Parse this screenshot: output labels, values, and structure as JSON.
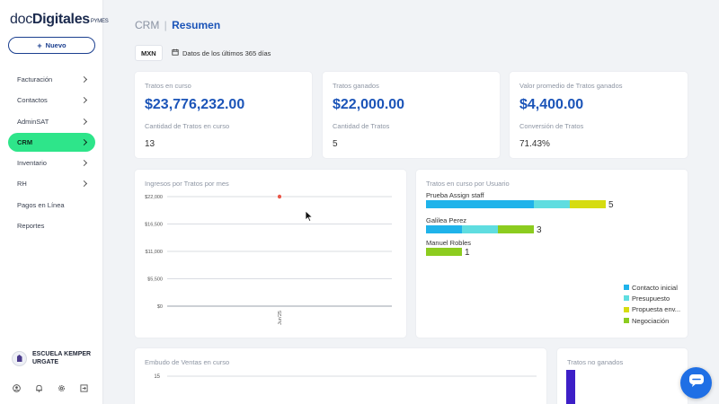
{
  "brand": {
    "doc": "doc",
    "digitales": "Digitales",
    "pymes": "PYMES"
  },
  "sidebar": {
    "new_label": "Nuevo",
    "items": [
      {
        "label": "Facturación",
        "has_chevron": true,
        "active": false
      },
      {
        "label": "Contactos",
        "has_chevron": true,
        "active": false
      },
      {
        "label": "AdminSAT",
        "has_chevron": true,
        "active": false
      },
      {
        "label": "CRM",
        "has_chevron": true,
        "active": true
      },
      {
        "label": "Inventario",
        "has_chevron": true,
        "active": false
      },
      {
        "label": "RH",
        "has_chevron": true,
        "active": false
      },
      {
        "label": "Pagos en Línea",
        "has_chevron": false,
        "active": false
      },
      {
        "label": "Reportes",
        "has_chevron": false,
        "active": false
      }
    ],
    "org_name": "ESCUELA KEMPER URGATE",
    "bottom_icons": [
      "user-icon",
      "bell-icon",
      "gear-icon",
      "logout-icon"
    ]
  },
  "header": {
    "section": "CRM",
    "separator": "|",
    "page": "Resumen",
    "currency": "MXN",
    "period": "Datos de los últimos 365 días"
  },
  "kpis": [
    {
      "label": "Tratos en curso",
      "value": "$23,776,232.00",
      "sublabel": "Cantidad de Tratos en curso",
      "subvalue": "13"
    },
    {
      "label": "Tratos ganados",
      "value": "$22,000.00",
      "sublabel": "Cantidad de Tratos",
      "subvalue": "5"
    },
    {
      "label": "Valor promedio de Tratos ganados",
      "value": "$4,400.00",
      "sublabel": "Conversión de Tratos",
      "subvalue": "71.43%"
    }
  ],
  "ingresos": {
    "title": "Ingresos por Tratos por mes",
    "chart_data": {
      "type": "line",
      "title": "Ingresos por Tratos por mes",
      "categories": [
        "Jun'25"
      ],
      "series": [
        {
          "values": [
            22000
          ]
        }
      ],
      "ylim": [
        0,
        22000
      ],
      "yticks": [
        "$22,000",
        "$16,500",
        "$11,000",
        "$5,500",
        "$0"
      ],
      "point_color": "#e8584a",
      "grid": true
    }
  },
  "usuarios": {
    "title": "Tratos en curso por Usuario",
    "chart_data": {
      "type": "bar",
      "orientation": "horizontal",
      "stacked": true,
      "title": "Tratos en curso por Usuario",
      "categories": [
        "Prueba Assign staff",
        "Galilea Perez",
        "Manuel Robles"
      ],
      "totals": [
        5,
        3,
        1
      ],
      "series": [
        {
          "name": "Contacto inicial",
          "color": "#1fb3ea",
          "values": [
            3,
            1,
            0
          ]
        },
        {
          "name": "Presupuesto",
          "color": "#5fdde0",
          "values": [
            1,
            1,
            0
          ]
        },
        {
          "name": "Propuesta env...",
          "color": "#d6dc10",
          "values": [
            1,
            0,
            0
          ]
        },
        {
          "name": "Negociación",
          "color": "#8ccc1f",
          "values": [
            0,
            1,
            1
          ]
        }
      ],
      "legend": "bottom-right"
    }
  },
  "embudo": {
    "title": "Embudo de Ventas en curso",
    "chart_data": {
      "type": "bar",
      "title": "Embudo de Ventas en curso",
      "yticks": [
        "15"
      ]
    }
  },
  "no_ganados": {
    "title": "Tratos no ganados",
    "bar_color": "#3d1fc7"
  },
  "colors": {
    "accent": "#1b54b8",
    "active_nav": "#2ee58a",
    "chat_button": "#1f6fe5"
  }
}
